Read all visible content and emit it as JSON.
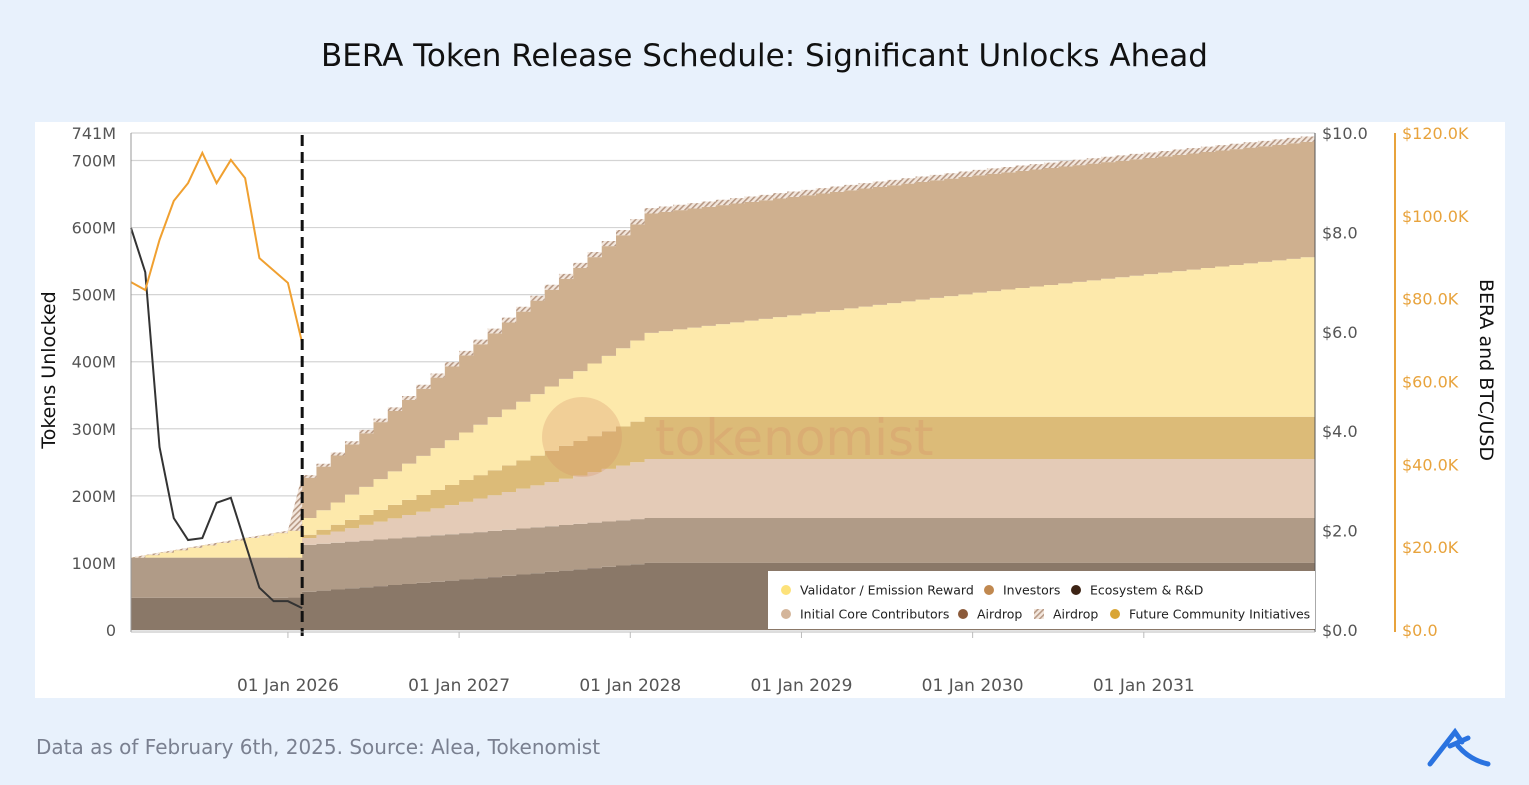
{
  "title": "BERA Token Release Schedule: Significant Unlocks Ahead",
  "footer": "Data as of February 6th, 2025. Source: Alea, Tokenomist",
  "watermark": "tokenomist",
  "logo_text": "AK",
  "chart_data": {
    "type": "area",
    "stacked": true,
    "ylabel": "Tokens Unlocked",
    "y2label": "BERA and BTC/USD",
    "ylim": [
      0,
      741
    ],
    "y_ticks": [
      "0",
      "100M",
      "200M",
      "300M",
      "400M",
      "500M",
      "600M",
      "700M",
      "741M"
    ],
    "y_tick_values": [
      0,
      100,
      200,
      300,
      400,
      500,
      600,
      700,
      741
    ],
    "y2_ticks": [
      "$0.0",
      "$2.0",
      "$4.0",
      "$6.0",
      "$8.0",
      "$10.0"
    ],
    "y2lim": [
      0,
      10
    ],
    "y3_ticks": [
      "$0.0",
      "$20.0K",
      "$40.0K",
      "$60.0K",
      "$80.0K",
      "$100.0K",
      "$120.0K"
    ],
    "y3lim": [
      0,
      120
    ],
    "x_ticks": [
      "01 Jan 2026",
      "01 Jan 2027",
      "01 Jan 2028",
      "01 Jan 2029",
      "01 Jan 2030",
      "01 Jan 2031"
    ],
    "x_tick_dates": [
      "2026-01",
      "2027-01",
      "2028-01",
      "2029-01",
      "2030-01",
      "2031-01"
    ],
    "xlim": [
      "2025-02",
      "2032-01"
    ],
    "marker_date": "2026-02",
    "grid": true,
    "legend_position": "bottom-right",
    "dates": [
      "2025-02",
      "2026-01",
      "2026-02",
      "2027-02",
      "2028-02",
      "2030-01",
      "2032-01"
    ],
    "stack": [
      {
        "key": "ecosystem",
        "values": [
          48,
          48,
          57,
          77,
          100,
          100,
          100
        ],
        "color": "#8a7868"
      },
      {
        "key": "airdrop",
        "values": [
          60,
          60,
          70,
          69,
          67,
          67,
          67
        ],
        "color": "#b09b87"
      },
      {
        "key": "core",
        "values": [
          0,
          0,
          10,
          50,
          88,
          88,
          88
        ],
        "color": "#e4cbb7"
      },
      {
        "key": "future",
        "values": [
          0,
          0,
          5,
          35,
          63,
          63,
          63
        ],
        "color": "#dcbb78"
      },
      {
        "key": "validator",
        "values": [
          0,
          40,
          25,
          75,
          125,
          185,
          240
        ],
        "color": "#fde9ab"
      },
      {
        "key": "investors",
        "values": [
          0,
          0,
          60,
          120,
          178,
          175,
          172
        ],
        "color": "#cfb08f"
      },
      {
        "key": "airdrop_hatched",
        "values": [
          0,
          0,
          4,
          7,
          8,
          8,
          8
        ],
        "color": "#e8d8cc"
      }
    ],
    "legend": [
      {
        "name": "Validator / Emission Reward",
        "color": "#fde27a"
      },
      {
        "name": "Investors",
        "color": "#c0884f"
      },
      {
        "name": "Ecosystem & R&D",
        "color": "#3d2415"
      },
      {
        "name": "Initial Core Contributors",
        "color": "#d4b59a"
      },
      {
        "name": "Airdrop",
        "color": "#8b5a3a"
      },
      {
        "name": "Airdrop",
        "color": "hatched"
      },
      {
        "name": "Future Community Initiatives",
        "color": "#d9a535"
      }
    ],
    "bera_price": {
      "axis": "y2",
      "color": "#333333",
      "dates": [
        "2025-02",
        "2025-03",
        "2025-04",
        "2025-05",
        "2025-06",
        "2025-07",
        "2025-08",
        "2025-09",
        "2025-11",
        "2025-12",
        "2026-01",
        "2026-02"
      ],
      "values": [
        8.09,
        7.2,
        3.68,
        2.25,
        1.81,
        1.85,
        2.56,
        2.66,
        0.85,
        0.58,
        0.58,
        0.44
      ]
    },
    "btc_price": {
      "axis": "y3",
      "color": "#f0a030",
      "dates": [
        "2025-02",
        "2025-03",
        "2025-04",
        "2025-05",
        "2025-06",
        "2025-07",
        "2025-08",
        "2025-09",
        "2025-10",
        "2025-11",
        "2026-01",
        "2026-02"
      ],
      "values": [
        84.0,
        82.1,
        94.2,
        103.6,
        107.9,
        115.2,
        107.9,
        113.5,
        109.1,
        89.8,
        83.8,
        69.3
      ]
    }
  }
}
